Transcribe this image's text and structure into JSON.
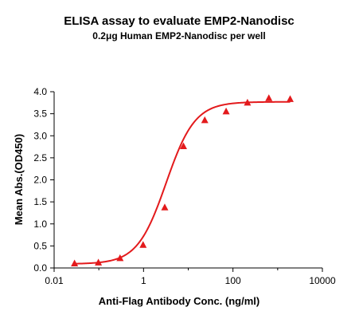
{
  "chart_data": {
    "type": "scatter",
    "title": "ELISA assay to evaluate EMP2-Nanodisc",
    "subtitle": "0.2μg Human EMP2-Nanodisc per well",
    "xlabel": "Anti-Flag Antibody Conc. (ng/ml)",
    "ylabel": "Mean Abs.(OD450)",
    "x_scale": "log",
    "xlim": [
      0.01,
      10000
    ],
    "ylim": [
      0,
      4.0
    ],
    "x_ticks": [
      0.01,
      1,
      100,
      10000
    ],
    "x_tick_labels": [
      "0.01",
      "1",
      "100",
      "10000"
    ],
    "y_ticks": [
      0,
      0.5,
      1.0,
      1.5,
      2.0,
      2.5,
      3.0,
      3.5,
      4.0
    ],
    "y_tick_labels": [
      "0.0",
      "0.5",
      "1.0",
      "1.5",
      "2.0",
      "2.5",
      "3.0",
      "3.5",
      "4.0"
    ],
    "grid": false,
    "marker": "triangle",
    "color": "#e31a1c",
    "series": [
      {
        "x": [
          0.0286,
          0.0977,
          0.298,
          0.977,
          2.98,
          7.81,
          23.4,
          70.3,
          211,
          635,
          1900
        ],
        "y": [
          0.1,
          0.12,
          0.22,
          0.52,
          1.37,
          2.76,
          3.35,
          3.55,
          3.75,
          3.85,
          3.83
        ]
      }
    ],
    "fit": {
      "bottom": 0.09,
      "top": 3.77,
      "ec50": 3.2,
      "hill": 1.35
    }
  }
}
